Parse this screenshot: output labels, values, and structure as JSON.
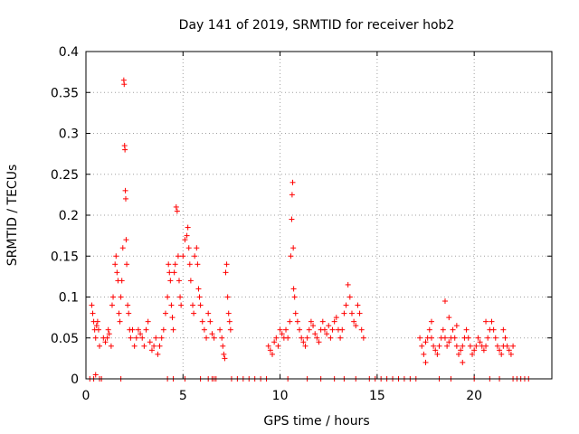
{
  "chart_data": {
    "type": "scatter",
    "title": "Day 141 of 2019, SRMTID for receiver hob2",
    "xlabel": "GPS time / hours",
    "ylabel": "SRMTID / TECUs",
    "xlim": [
      0,
      24
    ],
    "ylim": [
      0,
      0.4
    ],
    "x_ticks": [
      0,
      5,
      10,
      15,
      20
    ],
    "x_tick_labels": [
      "0",
      "5",
      "10",
      "15",
      "20"
    ],
    "y_ticks": [
      0,
      0.05,
      0.1,
      0.15,
      0.2,
      0.25,
      0.3,
      0.35,
      0.4
    ],
    "y_tick_labels": [
      "0",
      "0.05",
      "0.1",
      "0.15",
      "0.2",
      "0.25",
      "0.3",
      "0.35",
      "0.4"
    ],
    "grid": true,
    "marker": "plus",
    "color": "#ff0000",
    "series": [
      {
        "name": "SRMTID",
        "points": [
          [
            0.3,
            0.09
          ],
          [
            0.35,
            0.08
          ],
          [
            0.4,
            0.07
          ],
          [
            0.45,
            0.06
          ],
          [
            0.5,
            0.05
          ],
          [
            0.55,
            0.065
          ],
          [
            0.6,
            0.07
          ],
          [
            0.65,
            0.06
          ],
          [
            0.7,
            0.04
          ],
          [
            0.9,
            0.05
          ],
          [
            1.0,
            0.045
          ],
          [
            1.1,
            0.05
          ],
          [
            1.15,
            0.06
          ],
          [
            1.2,
            0.055
          ],
          [
            1.3,
            0.04
          ],
          [
            1.35,
            0.09
          ],
          [
            1.4,
            0.1
          ],
          [
            1.5,
            0.14
          ],
          [
            1.55,
            0.15
          ],
          [
            1.6,
            0.13
          ],
          [
            1.65,
            0.12
          ],
          [
            1.7,
            0.08
          ],
          [
            1.75,
            0.07
          ],
          [
            1.8,
            0.1
          ],
          [
            1.85,
            0.12
          ],
          [
            1.9,
            0.16
          ],
          [
            1.95,
            0.365
          ],
          [
            1.97,
            0.36
          ],
          [
            1.99,
            0.285
          ],
          [
            2.01,
            0.28
          ],
          [
            2.03,
            0.23
          ],
          [
            2.05,
            0.22
          ],
          [
            2.07,
            0.17
          ],
          [
            2.1,
            0.14
          ],
          [
            2.15,
            0.09
          ],
          [
            2.2,
            0.08
          ],
          [
            2.25,
            0.06
          ],
          [
            2.3,
            0.05
          ],
          [
            2.4,
            0.06
          ],
          [
            2.5,
            0.04
          ],
          [
            2.6,
            0.05
          ],
          [
            2.7,
            0.06
          ],
          [
            2.8,
            0.055
          ],
          [
            2.9,
            0.05
          ],
          [
            3.0,
            0.04
          ],
          [
            3.1,
            0.06
          ],
          [
            3.2,
            0.07
          ],
          [
            3.3,
            0.045
          ],
          [
            3.4,
            0.035
          ],
          [
            3.5,
            0.04
          ],
          [
            3.6,
            0.05
          ],
          [
            3.7,
            0.03
          ],
          [
            3.8,
            0.04
          ],
          [
            3.9,
            0.05
          ],
          [
            4.0,
            0.06
          ],
          [
            4.1,
            0.08
          ],
          [
            4.2,
            0.1
          ],
          [
            4.25,
            0.14
          ],
          [
            4.3,
            0.13
          ],
          [
            4.35,
            0.12
          ],
          [
            4.4,
            0.09
          ],
          [
            4.45,
            0.075
          ],
          [
            4.5,
            0.06
          ],
          [
            4.55,
            0.13
          ],
          [
            4.6,
            0.14
          ],
          [
            4.65,
            0.21
          ],
          [
            4.7,
            0.205
          ],
          [
            4.75,
            0.15
          ],
          [
            4.8,
            0.12
          ],
          [
            4.85,
            0.1
          ],
          [
            4.9,
            0.09
          ],
          [
            5.0,
            0.15
          ],
          [
            5.1,
            0.17
          ],
          [
            5.2,
            0.175
          ],
          [
            5.25,
            0.185
          ],
          [
            5.3,
            0.16
          ],
          [
            5.35,
            0.14
          ],
          [
            5.4,
            0.12
          ],
          [
            5.5,
            0.09
          ],
          [
            5.55,
            0.08
          ],
          [
            5.6,
            0.15
          ],
          [
            5.7,
            0.16
          ],
          [
            5.75,
            0.14
          ],
          [
            5.8,
            0.11
          ],
          [
            5.85,
            0.1
          ],
          [
            5.9,
            0.09
          ],
          [
            6.0,
            0.07
          ],
          [
            6.1,
            0.06
          ],
          [
            6.2,
            0.05
          ],
          [
            6.3,
            0.08
          ],
          [
            6.4,
            0.07
          ],
          [
            6.5,
            0.055
          ],
          [
            6.6,
            0.05
          ],
          [
            6.9,
            0.06
          ],
          [
            7.0,
            0.05
          ],
          [
            7.05,
            0.04
          ],
          [
            7.1,
            0.03
          ],
          [
            7.15,
            0.025
          ],
          [
            7.2,
            0.13
          ],
          [
            7.25,
            0.14
          ],
          [
            7.3,
            0.1
          ],
          [
            7.35,
            0.08
          ],
          [
            7.4,
            0.07
          ],
          [
            7.45,
            0.06
          ],
          [
            9.4,
            0.04
          ],
          [
            9.5,
            0.035
          ],
          [
            9.6,
            0.03
          ],
          [
            9.7,
            0.045
          ],
          [
            9.8,
            0.05
          ],
          [
            9.9,
            0.04
          ],
          [
            10.0,
            0.06
          ],
          [
            10.1,
            0.055
          ],
          [
            10.2,
            0.05
          ],
          [
            10.3,
            0.06
          ],
          [
            10.4,
            0.05
          ],
          [
            10.5,
            0.07
          ],
          [
            10.55,
            0.15
          ],
          [
            10.6,
            0.195
          ],
          [
            10.62,
            0.225
          ],
          [
            10.65,
            0.24
          ],
          [
            10.68,
            0.16
          ],
          [
            10.7,
            0.11
          ],
          [
            10.75,
            0.1
          ],
          [
            10.8,
            0.08
          ],
          [
            10.9,
            0.07
          ],
          [
            11.0,
            0.06
          ],
          [
            11.1,
            0.05
          ],
          [
            11.2,
            0.045
          ],
          [
            11.3,
            0.04
          ],
          [
            11.4,
            0.05
          ],
          [
            11.5,
            0.06
          ],
          [
            11.6,
            0.07
          ],
          [
            11.7,
            0.065
          ],
          [
            11.8,
            0.055
          ],
          [
            11.9,
            0.05
          ],
          [
            12.0,
            0.045
          ],
          [
            12.1,
            0.06
          ],
          [
            12.2,
            0.07
          ],
          [
            12.3,
            0.06
          ],
          [
            12.4,
            0.055
          ],
          [
            12.5,
            0.065
          ],
          [
            12.6,
            0.05
          ],
          [
            12.7,
            0.06
          ],
          [
            12.8,
            0.07
          ],
          [
            12.9,
            0.075
          ],
          [
            13.0,
            0.06
          ],
          [
            13.1,
            0.05
          ],
          [
            13.2,
            0.06
          ],
          [
            13.3,
            0.08
          ],
          [
            13.4,
            0.09
          ],
          [
            13.5,
            0.115
          ],
          [
            13.6,
            0.1
          ],
          [
            13.7,
            0.08
          ],
          [
            13.8,
            0.07
          ],
          [
            13.9,
            0.065
          ],
          [
            14.0,
            0.09
          ],
          [
            14.1,
            0.08
          ],
          [
            14.2,
            0.06
          ],
          [
            14.3,
            0.05
          ],
          [
            17.2,
            0.05
          ],
          [
            17.3,
            0.04
          ],
          [
            17.4,
            0.03
          ],
          [
            17.5,
            0.045
          ],
          [
            17.6,
            0.05
          ],
          [
            17.7,
            0.06
          ],
          [
            17.8,
            0.05
          ],
          [
            17.9,
            0.04
          ],
          [
            18.0,
            0.035
          ],
          [
            18.1,
            0.03
          ],
          [
            18.2,
            0.04
          ],
          [
            18.3,
            0.05
          ],
          [
            18.4,
            0.06
          ],
          [
            18.5,
            0.05
          ],
          [
            18.6,
            0.04
          ],
          [
            18.7,
            0.045
          ],
          [
            18.8,
            0.05
          ],
          [
            18.9,
            0.06
          ],
          [
            19.0,
            0.05
          ],
          [
            19.1,
            0.04
          ],
          [
            19.2,
            0.03
          ],
          [
            19.3,
            0.035
          ],
          [
            19.4,
            0.04
          ],
          [
            19.5,
            0.05
          ],
          [
            19.6,
            0.06
          ],
          [
            19.7,
            0.05
          ],
          [
            19.8,
            0.04
          ],
          [
            19.9,
            0.03
          ],
          [
            20.0,
            0.035
          ],
          [
            20.1,
            0.04
          ],
          [
            20.2,
            0.05
          ],
          [
            20.3,
            0.045
          ],
          [
            20.4,
            0.04
          ],
          [
            20.5,
            0.035
          ],
          [
            20.6,
            0.04
          ],
          [
            20.7,
            0.05
          ],
          [
            20.8,
            0.06
          ],
          [
            20.9,
            0.07
          ],
          [
            21.0,
            0.06
          ],
          [
            21.1,
            0.05
          ],
          [
            21.2,
            0.04
          ],
          [
            21.3,
            0.035
          ],
          [
            21.4,
            0.03
          ],
          [
            21.5,
            0.04
          ],
          [
            21.6,
            0.05
          ],
          [
            21.7,
            0.04
          ],
          [
            21.8,
            0.035
          ],
          [
            21.9,
            0.03
          ],
          [
            22.0,
            0.04
          ],
          [
            18.5,
            0.095
          ],
          [
            18.7,
            0.075
          ],
          [
            19.1,
            0.065
          ],
          [
            19.4,
            0.02
          ],
          [
            20.6,
            0.07
          ],
          [
            21.5,
            0.06
          ],
          [
            17.8,
            0.07
          ],
          [
            17.5,
            0.02
          ],
          [
            0.2,
            0.0
          ],
          [
            0.4,
            0.0
          ],
          [
            0.5,
            0.005
          ],
          [
            0.7,
            0.0
          ],
          [
            0.8,
            0.0
          ],
          [
            1.8,
            0.0
          ],
          [
            4.2,
            0.0
          ],
          [
            4.5,
            0.0
          ],
          [
            5.1,
            0.0
          ],
          [
            5.9,
            0.0
          ],
          [
            6.3,
            0.0
          ],
          [
            6.5,
            0.0
          ],
          [
            6.6,
            0.0
          ],
          [
            6.7,
            0.0
          ],
          [
            7.5,
            0.0
          ],
          [
            7.8,
            0.0
          ],
          [
            8.1,
            0.0
          ],
          [
            8.4,
            0.0
          ],
          [
            8.7,
            0.0
          ],
          [
            9.0,
            0.0
          ],
          [
            9.3,
            0.0
          ],
          [
            10.4,
            0.0
          ],
          [
            11.4,
            0.0
          ],
          [
            12.1,
            0.0
          ],
          [
            12.8,
            0.0
          ],
          [
            13.3,
            0.0
          ],
          [
            13.9,
            0.0
          ],
          [
            14.6,
            0.0
          ],
          [
            14.9,
            0.0
          ],
          [
            15.2,
            0.0
          ],
          [
            15.5,
            0.0
          ],
          [
            15.8,
            0.0
          ],
          [
            16.1,
            0.0
          ],
          [
            16.4,
            0.0
          ],
          [
            16.7,
            0.0
          ],
          [
            17.0,
            0.0
          ],
          [
            18.2,
            0.0
          ],
          [
            18.8,
            0.0
          ],
          [
            20.0,
            0.0
          ],
          [
            20.8,
            0.0
          ],
          [
            21.3,
            0.0
          ],
          [
            22.0,
            0.0
          ],
          [
            22.2,
            0.0
          ],
          [
            22.4,
            0.0
          ],
          [
            22.6,
            0.0
          ],
          [
            22.8,
            0.0
          ]
        ]
      }
    ]
  }
}
